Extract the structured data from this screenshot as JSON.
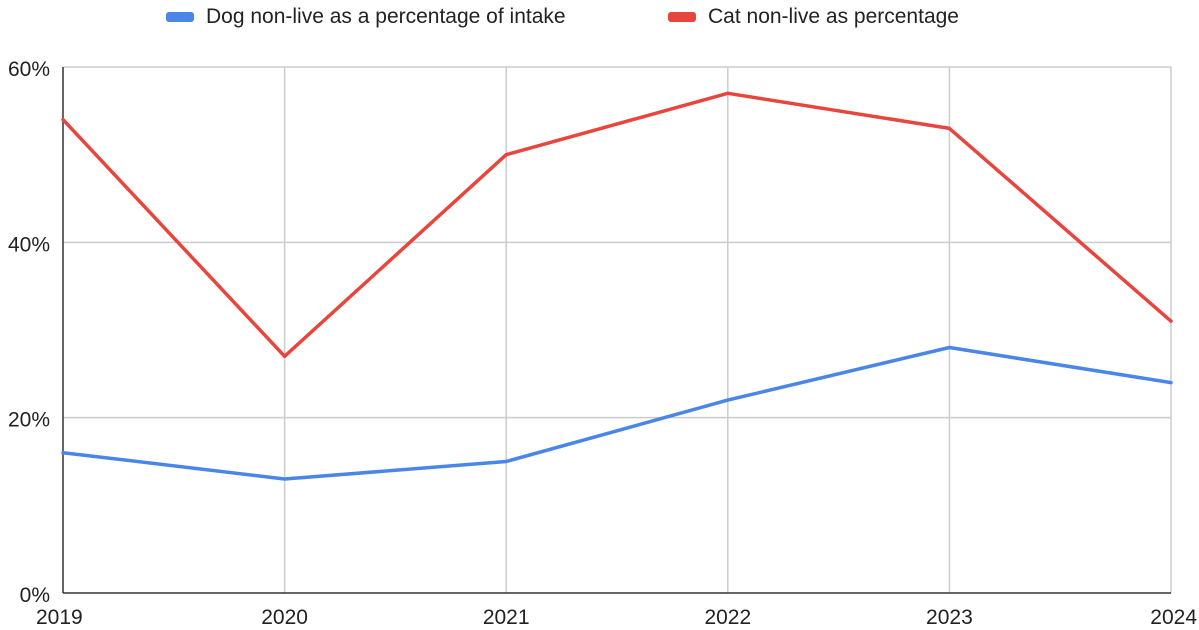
{
  "chart_data": {
    "type": "line",
    "title": "",
    "xlabel": "",
    "ylabel": "",
    "categories": [
      "2019",
      "2020",
      "2021",
      "2022",
      "2023",
      "2024"
    ],
    "ylim": [
      0,
      60
    ],
    "yticks": [
      0,
      20,
      40,
      60
    ],
    "ytick_labels": [
      "0%",
      "20%",
      "40%",
      "60%"
    ],
    "grid": true,
    "legend_position": "top",
    "series": [
      {
        "name": "Dog non-live as a percentage of intake",
        "color": "#4a86e8",
        "values": [
          16,
          13,
          15,
          22,
          28,
          24
        ]
      },
      {
        "name": "Cat non-live as percentage",
        "color": "#e8453c",
        "values": [
          54,
          27,
          50,
          57,
          53,
          31
        ]
      }
    ]
  }
}
